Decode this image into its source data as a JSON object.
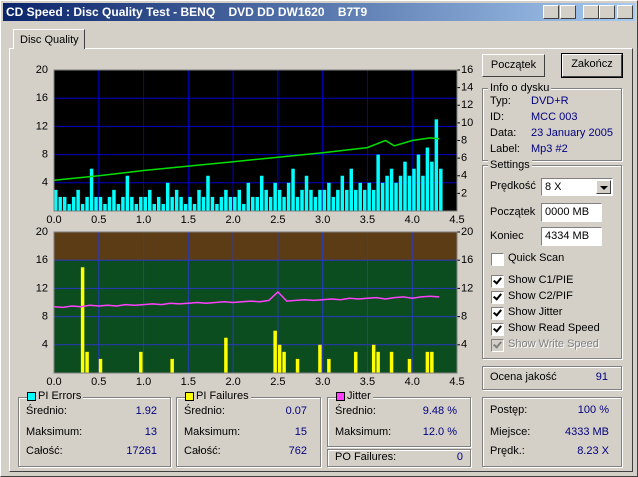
{
  "window": {
    "title": "CD Speed : Disc Quality Test - BENQ    DVD DD DW1620    B7T9"
  },
  "tab": "Disc Quality",
  "chart_data": [
    {
      "type": "bar",
      "background": "#000000",
      "grid": true,
      "grid_color": "#0000c8",
      "xlim": [
        0,
        4.5
      ],
      "xticks": [
        {
          "value": 0,
          "label": "0.0"
        },
        0.5,
        {
          "value": 1,
          "label": "1.0"
        },
        1.5,
        {
          "value": 2,
          "label": "2.0"
        },
        2.5,
        {
          "value": 3,
          "label": "3.0"
        },
        3.5,
        {
          "value": 4,
          "label": "4.0"
        },
        4.5
      ],
      "ylim": [
        0,
        20
      ],
      "yticks": [
        4,
        8,
        12,
        16,
        20
      ],
      "y2lim": [
        0,
        16
      ],
      "y2ticks": [
        2,
        4,
        6,
        8,
        10,
        12,
        14,
        16
      ],
      "series": [
        {
          "type": "bar",
          "color": "#00ffff",
          "x": [
            0,
            0.05,
            0.1,
            0.15,
            0.2,
            0.25,
            0.3,
            0.35,
            0.4,
            0.45,
            0.5,
            0.55,
            0.6,
            0.65,
            0.7,
            0.75,
            0.8,
            0.85,
            0.9,
            0.95,
            1,
            1.05,
            1.1,
            1.15,
            1.2,
            1.25,
            1.3,
            1.35,
            1.4,
            1.45,
            1.5,
            1.55,
            1.6,
            1.65,
            1.7,
            1.75,
            1.8,
            1.85,
            1.9,
            1.95,
            2,
            2.05,
            2.1,
            2.15,
            2.2,
            2.25,
            2.3,
            2.35,
            2.4,
            2.45,
            2.5,
            2.55,
            2.6,
            2.65,
            2.7,
            2.75,
            2.8,
            2.85,
            2.9,
            2.95,
            3,
            3.05,
            3.1,
            3.15,
            3.2,
            3.25,
            3.3,
            3.35,
            3.4,
            3.45,
            3.5,
            3.55,
            3.6,
            3.65,
            3.7,
            3.75,
            3.8,
            3.85,
            3.9,
            3.95,
            4,
            4.05,
            4.1,
            4.15,
            4.2,
            4.25,
            4.3
          ],
          "values": [
            3,
            2,
            2,
            1,
            2,
            3,
            1,
            2,
            6,
            2,
            2,
            1,
            2,
            3,
            1,
            2,
            5,
            2,
            1,
            2,
            2,
            3,
            1,
            2,
            1,
            4,
            2,
            3,
            2,
            1,
            2,
            1,
            3,
            2,
            5,
            2,
            1,
            2,
            3,
            2,
            2,
            3,
            1,
            4,
            2,
            2,
            5,
            3,
            2,
            4,
            3,
            2,
            4,
            6,
            2,
            3,
            5,
            3,
            2,
            3,
            3,
            4,
            2,
            3,
            5,
            3,
            6,
            3,
            4,
            3,
            4,
            3,
            8,
            4,
            5,
            6,
            4,
            5,
            7,
            5,
            6,
            8,
            5,
            9,
            7,
            13,
            6
          ]
        },
        {
          "type": "line",
          "axis": "y2",
          "color": "#00e000",
          "x": [
            0,
            0.5,
            1,
            1.5,
            2,
            2.5,
            3,
            3.5,
            3.7,
            3.8,
            4,
            4.2,
            4.3
          ],
          "values": [
            3.5,
            4.0,
            4.6,
            5.1,
            5.6,
            6.1,
            6.6,
            7.2,
            8.0,
            7.4,
            8.0,
            8.3,
            8.2
          ]
        }
      ]
    },
    {
      "type": "line",
      "background": "#0b4d1f",
      "grid": true,
      "grid_color": "#2a3ac0",
      "bands": [
        {
          "from": 16,
          "to": 20,
          "color": "#5c3c14"
        }
      ],
      "xlim": [
        0,
        4.5
      ],
      "xticks": [
        {
          "value": 0,
          "label": "0.0"
        },
        0.5,
        {
          "value": 1,
          "label": "1.0"
        },
        1.5,
        {
          "value": 2,
          "label": "2.0"
        },
        2.5,
        {
          "value": 3,
          "label": "3.0"
        },
        3.5,
        {
          "value": 4,
          "label": "4.0"
        },
        4.5
      ],
      "ylim": [
        0,
        20
      ],
      "yticks": [
        4,
        8,
        12,
        16,
        20
      ],
      "y2lim": [
        0,
        20
      ],
      "y2ticks": [
        4,
        8,
        12,
        16,
        20
      ],
      "series": [
        {
          "type": "bar",
          "color": "#ffff00",
          "x": [
            0.3,
            0.35,
            0.5,
            0.95,
            1.3,
            1.9,
            2.45,
            2.5,
            2.55,
            2.7,
            2.95,
            3.05,
            3.35,
            3.55,
            3.6,
            3.75,
            3.95,
            4.15,
            4.2
          ],
          "values": [
            15,
            3,
            2,
            3,
            2,
            5,
            6,
            4,
            3,
            2,
            4,
            2,
            3,
            4,
            3,
            3,
            2,
            3,
            3
          ]
        },
        {
          "type": "line",
          "color": "#ff40ff",
          "x": [
            0,
            0.1,
            0.2,
            0.3,
            0.4,
            0.5,
            0.6,
            0.7,
            0.8,
            0.9,
            1,
            1.1,
            1.2,
            1.3,
            1.4,
            1.5,
            1.6,
            1.7,
            1.8,
            1.9,
            2,
            2.1,
            2.2,
            2.3,
            2.4,
            2.5,
            2.6,
            2.7,
            2.8,
            2.9,
            3,
            3.1,
            3.2,
            3.3,
            3.4,
            3.5,
            3.6,
            3.7,
            3.8,
            3.9,
            4,
            4.1,
            4.2,
            4.3
          ],
          "values": [
            9.4,
            9.3,
            9.5,
            9.4,
            9.6,
            9.5,
            9.6,
            9.5,
            9.7,
            9.6,
            9.7,
            9.8,
            9.7,
            9.9,
            9.8,
            9.9,
            10.0,
            9.9,
            10.0,
            10.1,
            10.0,
            10.1,
            10.2,
            10.1,
            10.3,
            11.5,
            10.2,
            10.3,
            10.4,
            10.3,
            10.4,
            10.5,
            10.4,
            10.6,
            10.5,
            10.6,
            10.7,
            10.5,
            10.7,
            10.8,
            10.6,
            10.8,
            10.9,
            10.8
          ]
        }
      ]
    }
  ],
  "buttons": {
    "start": "Początek",
    "stop": "Zakończ"
  },
  "disc_info": {
    "title": "Info o dysku",
    "rows": [
      {
        "label": "Typ:",
        "value": "DVD+R"
      },
      {
        "label": "ID:",
        "value": "MCC 003"
      },
      {
        "label": "Data:",
        "value": "23 January 2005"
      },
      {
        "label": "Label:",
        "value": "Mp3 #2"
      }
    ]
  },
  "settings": {
    "title": "Settings",
    "speed_label": "Prędkość",
    "speed": "8 X",
    "start_label": "Początek",
    "start": "0000 MB",
    "end_label": "Koniec",
    "end": "4334 MB",
    "options": [
      {
        "label": "Quick Scan",
        "checked": false,
        "enabled": true
      },
      {
        "label": "Show C1/PIE",
        "checked": true,
        "enabled": true
      },
      {
        "label": "Show C2/PIF",
        "checked": true,
        "enabled": true
      },
      {
        "label": "Show Jitter",
        "checked": true,
        "enabled": true
      },
      {
        "label": "Show Read Speed",
        "checked": true,
        "enabled": true
      },
      {
        "label": "Show Write Speed",
        "checked": true,
        "enabled": false
      }
    ]
  },
  "stats": [
    {
      "title": "PI Errors",
      "color": "#00ffff",
      "rows": [
        {
          "label": "Średnio:",
          "value": 1.92
        },
        {
          "label": "Maksimum:",
          "value": 13
        },
        {
          "label": "Całość:",
          "value": 17261
        }
      ]
    },
    {
      "title": "PI Failures",
      "color": "#ffff00",
      "rows": [
        {
          "label": "Średnio:",
          "value": 0.07
        },
        {
          "label": "Maksimum:",
          "value": 15
        },
        {
          "label": "Całość:",
          "value": 762
        }
      ]
    },
    {
      "title": "Jitter",
      "color": "#ff40ff",
      "rows": [
        {
          "label": "Średnio:",
          "value": "9.48 %"
        },
        {
          "label": "Maksimum:",
          "value": "12.0 %"
        }
      ]
    }
  ],
  "po_failures": {
    "label": "PO Failures:",
    "value": 0
  },
  "quality": {
    "label": "Ocena jakość",
    "value": 91
  },
  "progress": [
    {
      "label": "Postęp:",
      "value": "100 %"
    },
    {
      "label": "Miejsce:",
      "value": "4333 MB"
    },
    {
      "label": "Prędk.:",
      "value": "8.23 X"
    }
  ]
}
